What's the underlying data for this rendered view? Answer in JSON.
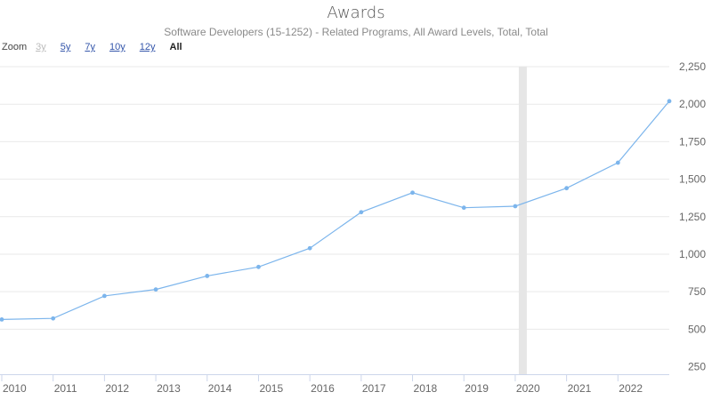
{
  "chart_data": {
    "type": "line",
    "title": "Awards",
    "subtitle": "Software Developers (15-1252) - Related Programs, All Award Levels, Total, Total",
    "x": [
      2010,
      2011,
      2012,
      2013,
      2014,
      2015,
      2016,
      2017,
      2018,
      2019,
      2020,
      2021,
      2022,
      2023
    ],
    "x_tick_labels": [
      "2010",
      "2011",
      "2012",
      "2013",
      "2014",
      "2015",
      "2016",
      "2017",
      "2018",
      "2019",
      "2020",
      "2021",
      "2022"
    ],
    "series": [
      {
        "values": [
          565,
          572,
          722,
          765,
          855,
          915,
          1040,
          1280,
          1410,
          1310,
          1320,
          1440,
          1610,
          2020
        ]
      }
    ],
    "y_ticks": [
      250,
      500,
      750,
      1000,
      1250,
      1500,
      1750,
      2000,
      2250
    ],
    "y_tick_labels": [
      "250",
      "500",
      "750",
      "1,000",
      "1,250",
      "1,500",
      "1,750",
      "2,000",
      "2,250"
    ],
    "ylim": [
      200,
      2250
    ],
    "xlim": [
      2010,
      2023
    ],
    "highlight_band_x": 2020,
    "grid": true,
    "line_color": "#7cb5ec",
    "band_color": "#e6e6e6"
  },
  "zoom": {
    "label": "Zoom",
    "buttons": [
      {
        "label": "3y",
        "state": "disabled"
      },
      {
        "label": "5y",
        "state": "normal"
      },
      {
        "label": "7y",
        "state": "normal"
      },
      {
        "label": "10y",
        "state": "normal"
      },
      {
        "label": "12y",
        "state": "normal"
      },
      {
        "label": "All",
        "state": "active"
      }
    ]
  }
}
